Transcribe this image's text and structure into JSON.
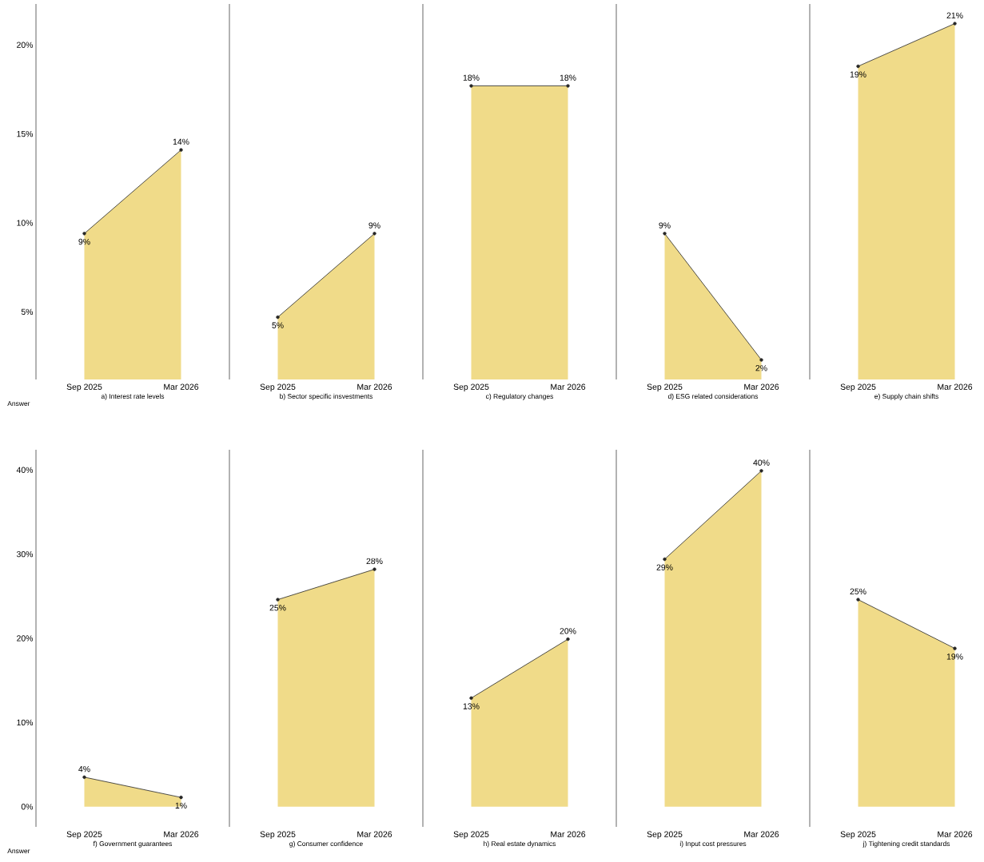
{
  "chart_data": [
    {
      "type": "area",
      "categories": [
        "Sep 2025",
        "Mar 2026"
      ],
      "values": [
        9.4,
        14.1
      ],
      "value_labels": [
        "9%",
        "14%"
      ],
      "color": "#f0db89",
      "marker": "circle",
      "xlabel": "a) Interest rate levels",
      "annotations": [
        "Answer"
      ],
      "ylim": [
        1.2,
        22.3
      ],
      "yticks": [
        {
          "value": 5,
          "label": "5%"
        },
        {
          "value": 10,
          "label": "10%"
        },
        {
          "value": 15,
          "label": "15%"
        },
        {
          "value": 20,
          "label": "20%"
        }
      ],
      "grid": false
    },
    {
      "type": "area",
      "categories": [
        "Sep 2025",
        "Mar 2026"
      ],
      "values": [
        4.7,
        9.4
      ],
      "value_labels": [
        "5%",
        "9%"
      ],
      "color": "#f0db89",
      "marker": "circle",
      "xlabel": "b) Sector specific insvestments",
      "ylim": [
        1.2,
        22.3
      ],
      "tick_labels": "x",
      "grid": false
    },
    {
      "type": "area",
      "categories": [
        "Sep 2025",
        "Mar 2026"
      ],
      "values": [
        17.7,
        17.7
      ],
      "value_labels": [
        "18%",
        "18%"
      ],
      "color": "#f0db89",
      "marker": "circle",
      "xlabel": "c) Regulatory changes",
      "ylim": [
        1.2,
        22.3
      ],
      "tick_labels": "x",
      "grid": false
    },
    {
      "type": "area",
      "categories": [
        "Sep 2025",
        "Mar 2026"
      ],
      "values": [
        9.4,
        2.3
      ],
      "value_labels": [
        "9%",
        "2%"
      ],
      "color": "#f0db89",
      "marker": "circle",
      "xlabel": "d) ESG related considerations",
      "ylim": [
        1.2,
        22.3
      ],
      "tick_labels": "x",
      "grid": false
    },
    {
      "type": "area",
      "categories": [
        "Sep 2025",
        "Mar 2026"
      ],
      "values": [
        18.8,
        21.2
      ],
      "value_labels": [
        "19%",
        "21%"
      ],
      "color": "#f0db89",
      "marker": "circle",
      "xlabel": "e) Supply chain shifts",
      "ylim": [
        1.2,
        22.3
      ],
      "tick_labels": "x",
      "grid": false
    },
    {
      "type": "area",
      "categories": [
        "Sep 2025",
        "Mar 2026"
      ],
      "values": [
        3.5,
        1.1
      ],
      "value_labels": [
        "4%",
        "1%"
      ],
      "color": "#f0db89",
      "marker": "circle",
      "xlabel": "f) Government guarantees",
      "annotations": [
        "Answer"
      ],
      "ylim": [
        -2.4,
        42.4
      ],
      "yticks": [
        {
          "value": 0,
          "label": "0%"
        },
        {
          "value": 10,
          "label": "10%"
        },
        {
          "value": 20,
          "label": "20%"
        },
        {
          "value": 30,
          "label": "30%"
        },
        {
          "value": 40,
          "label": "40%"
        }
      ],
      "grid": false
    },
    {
      "type": "area",
      "categories": [
        "Sep 2025",
        "Mar 2026"
      ],
      "values": [
        24.6,
        28.2
      ],
      "value_labels": [
        "25%",
        "28%"
      ],
      "color": "#f0db89",
      "marker": "circle",
      "xlabel": "g) Consumer confidence",
      "ylim": [
        -2.4,
        42.4
      ],
      "tick_labels": "x",
      "grid": false
    },
    {
      "type": "area",
      "categories": [
        "Sep 2025",
        "Mar 2026"
      ],
      "values": [
        12.9,
        19.9
      ],
      "value_labels": [
        "13%",
        "20%"
      ],
      "color": "#f0db89",
      "marker": "circle",
      "xlabel": "h) Real estate dynamics",
      "ylim": [
        -2.4,
        42.4
      ],
      "tick_labels": "x",
      "grid": false
    },
    {
      "type": "area",
      "categories": [
        "Sep 2025",
        "Mar 2026"
      ],
      "values": [
        29.4,
        39.9
      ],
      "value_labels": [
        "29%",
        "40%"
      ],
      "color": "#f0db89",
      "marker": "circle",
      "xlabel": "i) Input cost pressures",
      "ylim": [
        -2.4,
        42.4
      ],
      "tick_labels": "x",
      "grid": false
    },
    {
      "type": "area",
      "categories": [
        "Sep 2025",
        "Mar 2026"
      ],
      "values": [
        24.6,
        18.8
      ],
      "value_labels": [
        "25%",
        "19%"
      ],
      "color": "#f0db89",
      "marker": "circle",
      "xlabel": "j) Tightening credit standards",
      "ylim": [
        -2.4,
        42.4
      ],
      "tick_labels": "x",
      "grid": false
    }
  ]
}
